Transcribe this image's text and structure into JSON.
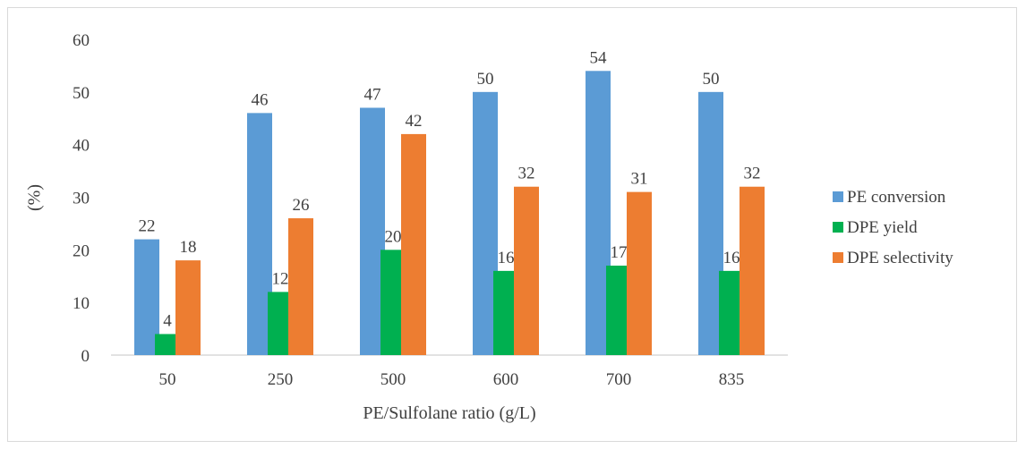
{
  "chart_data": {
    "type": "bar",
    "title": "",
    "xlabel": "PE/Sulfolane ratio (g/L)",
    "ylabel": "(%)",
    "categories": [
      "50",
      "250",
      "500",
      "600",
      "700",
      "835"
    ],
    "ylim": [
      0,
      60
    ],
    "yticks": [
      0,
      10,
      20,
      30,
      40,
      50,
      60
    ],
    "grid": false,
    "legend_position": "right",
    "data_labels": true,
    "series": [
      {
        "name": "PE conversion",
        "color": "#5b9bd5",
        "values": [
          22,
          46,
          47,
          50,
          54,
          50
        ]
      },
      {
        "name": "DPE yield",
        "color": "#00b050",
        "values": [
          4,
          12,
          20,
          16,
          17,
          16
        ]
      },
      {
        "name": "DPE selectivity",
        "color": "#ed7d31",
        "values": [
          18,
          26,
          42,
          32,
          31,
          32
        ]
      }
    ]
  }
}
